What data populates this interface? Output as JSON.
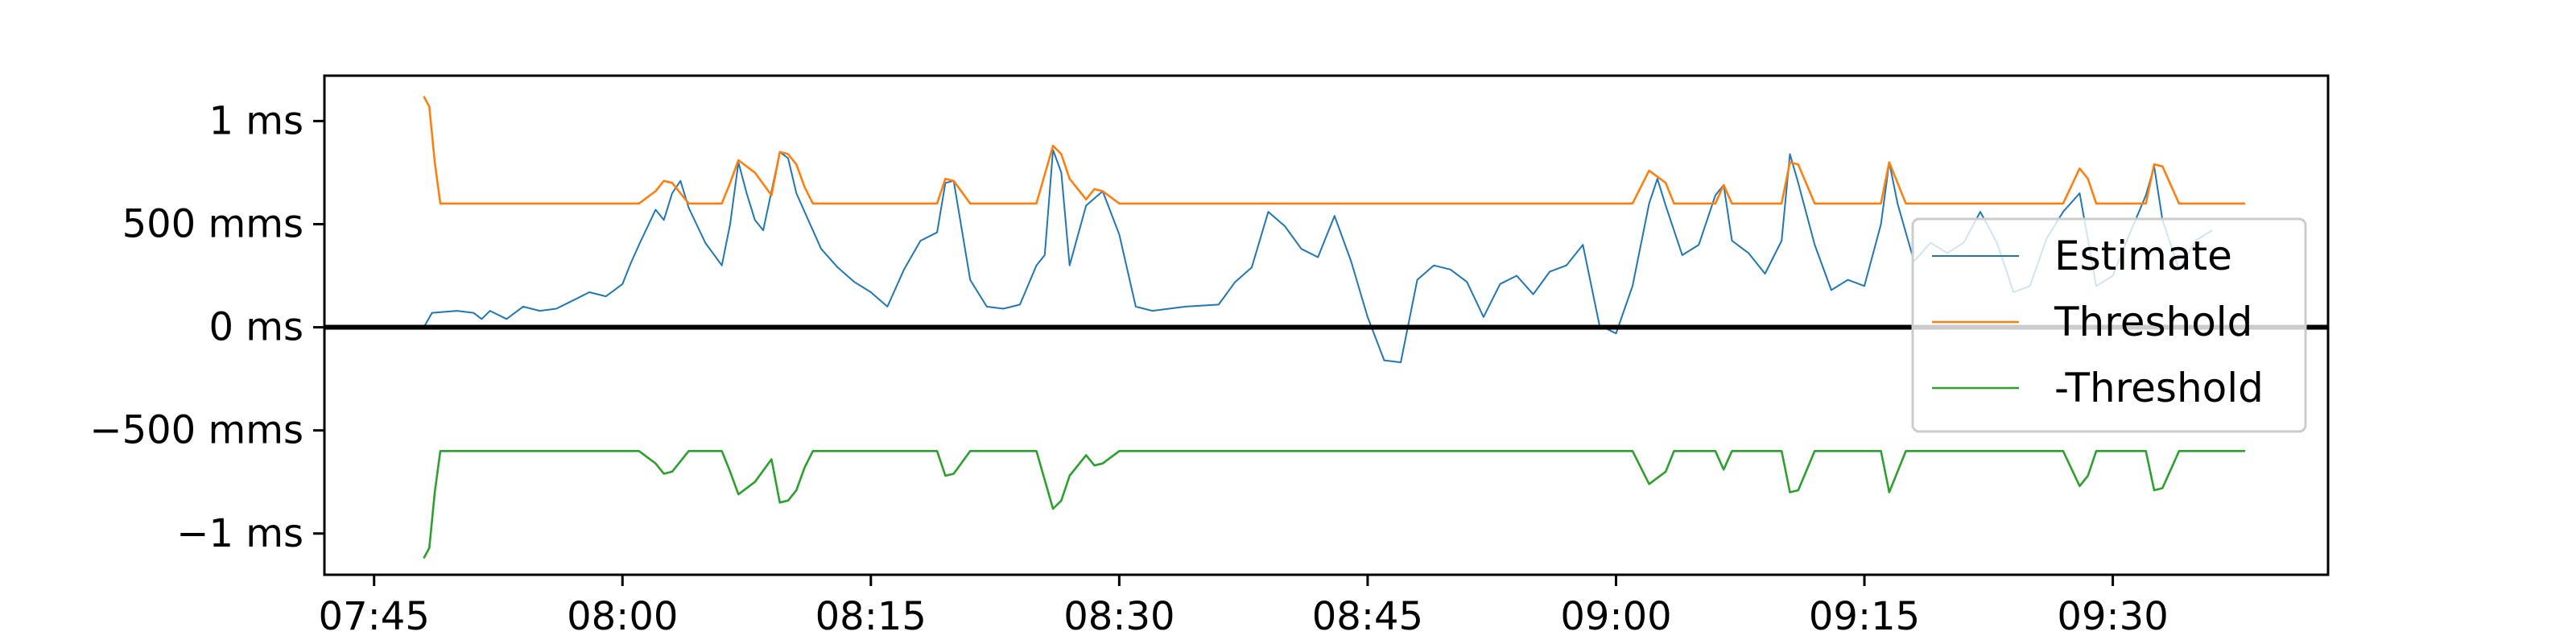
{
  "chart_data": {
    "type": "line",
    "title": "",
    "xlabel": "",
    "ylabel": "",
    "x_ticks": [
      "07:45",
      "08:00",
      "08:15",
      "08:30",
      "08:45",
      "09:00",
      "09:15",
      "09:30"
    ],
    "y_ticks": [
      {
        "value": 1000,
        "label": "1 ms"
      },
      {
        "value": 500,
        "label": "500 mms"
      },
      {
        "value": 0,
        "label": "0 ms"
      },
      {
        "value": -500,
        "label": "−500 mms"
      },
      {
        "value": -1000,
        "label": "−1 ms"
      }
    ],
    "xlim": [
      "07:42",
      "09:43"
    ],
    "ylim": [
      -1200,
      1220
    ],
    "zero_line": true,
    "grid": false,
    "legend_position": "center-right",
    "colors": {
      "estimate": "#1f77b4",
      "threshold": "#ff7f0e",
      "neg_threshold": "#2ca02c"
    },
    "series": [
      {
        "name": "Estimate",
        "points": [
          [
            "07:48",
            0
          ],
          [
            "07:48:30",
            70
          ],
          [
            "07:50",
            80
          ],
          [
            "07:51",
            70
          ],
          [
            "07:51:30",
            40
          ],
          [
            "07:52",
            80
          ],
          [
            "07:53",
            40
          ],
          [
            "07:54",
            100
          ],
          [
            "07:55",
            80
          ],
          [
            "07:56",
            90
          ],
          [
            "07:57",
            130
          ],
          [
            "07:58",
            170
          ],
          [
            "07:59",
            150
          ],
          [
            "08:00",
            210
          ],
          [
            "08:00:30",
            310
          ],
          [
            "08:01",
            400
          ],
          [
            "08:02",
            570
          ],
          [
            "08:02:30",
            520
          ],
          [
            "08:03",
            650
          ],
          [
            "08:03:30",
            710
          ],
          [
            "08:04",
            580
          ],
          [
            "08:05",
            410
          ],
          [
            "08:06",
            300
          ],
          [
            "08:06:30",
            500
          ],
          [
            "08:07",
            800
          ],
          [
            "08:07:30",
            650
          ],
          [
            "08:08",
            520
          ],
          [
            "08:08:30",
            470
          ],
          [
            "08:09",
            660
          ],
          [
            "08:09:30",
            850
          ],
          [
            "08:10",
            820
          ],
          [
            "08:10:30",
            650
          ],
          [
            "08:11",
            560
          ],
          [
            "08:12",
            380
          ],
          [
            "08:13",
            290
          ],
          [
            "08:14",
            220
          ],
          [
            "08:15",
            170
          ],
          [
            "08:16",
            100
          ],
          [
            "08:17",
            280
          ],
          [
            "08:18",
            420
          ],
          [
            "08:19",
            460
          ],
          [
            "08:19:30",
            700
          ],
          [
            "08:20",
            710
          ],
          [
            "08:21",
            230
          ],
          [
            "08:22",
            100
          ],
          [
            "08:23",
            90
          ],
          [
            "08:24",
            110
          ],
          [
            "08:25",
            300
          ],
          [
            "08:25:30",
            350
          ],
          [
            "08:26",
            860
          ],
          [
            "08:26:30",
            750
          ],
          [
            "08:27",
            300
          ],
          [
            "08:28",
            590
          ],
          [
            "08:29",
            660
          ],
          [
            "08:30",
            450
          ],
          [
            "08:31",
            100
          ],
          [
            "08:32",
            80
          ],
          [
            "08:33",
            90
          ],
          [
            "08:34",
            100
          ],
          [
            "08:36",
            110
          ],
          [
            "08:37",
            220
          ],
          [
            "08:38",
            290
          ],
          [
            "08:39",
            560
          ],
          [
            "08:40",
            490
          ],
          [
            "08:41",
            380
          ],
          [
            "08:42",
            340
          ],
          [
            "08:43",
            540
          ],
          [
            "08:44",
            320
          ],
          [
            "08:45",
            50
          ],
          [
            "08:46",
            -160
          ],
          [
            "08:47",
            -170
          ],
          [
            "08:48",
            230
          ],
          [
            "08:49",
            300
          ],
          [
            "08:50",
            280
          ],
          [
            "08:51",
            220
          ],
          [
            "08:52",
            50
          ],
          [
            "08:53",
            210
          ],
          [
            "08:54",
            250
          ],
          [
            "08:55",
            160
          ],
          [
            "08:56",
            270
          ],
          [
            "08:57",
            300
          ],
          [
            "08:58",
            400
          ],
          [
            "08:59",
            10
          ],
          [
            "09:00",
            -30
          ],
          [
            "09:01",
            200
          ],
          [
            "09:02",
            600
          ],
          [
            "09:02:30",
            720
          ],
          [
            "09:03",
            590
          ],
          [
            "09:04",
            350
          ],
          [
            "09:05",
            400
          ],
          [
            "09:06",
            640
          ],
          [
            "09:06:30",
            690
          ],
          [
            "09:07",
            420
          ],
          [
            "09:08",
            360
          ],
          [
            "09:09",
            260
          ],
          [
            "09:10",
            420
          ],
          [
            "09:10:30",
            840
          ],
          [
            "09:11",
            700
          ],
          [
            "09:12",
            400
          ],
          [
            "09:13",
            180
          ],
          [
            "09:14",
            230
          ],
          [
            "09:15",
            200
          ],
          [
            "09:16",
            500
          ],
          [
            "09:16:30",
            800
          ],
          [
            "09:17",
            600
          ],
          [
            "09:18",
            320
          ],
          [
            "09:19",
            410
          ],
          [
            "09:20",
            360
          ],
          [
            "09:21",
            410
          ],
          [
            "09:22",
            560
          ],
          [
            "09:23",
            410
          ],
          [
            "09:24",
            170
          ],
          [
            "09:25",
            200
          ],
          [
            "09:26",
            430
          ],
          [
            "09:27",
            560
          ],
          [
            "09:28",
            650
          ],
          [
            "09:29",
            200
          ],
          [
            "09:30",
            250
          ],
          [
            "09:31",
            450
          ],
          [
            "09:32",
            640
          ],
          [
            "09:32:30",
            780
          ],
          [
            "09:33",
            520
          ],
          [
            "09:34",
            280
          ],
          [
            "09:35",
            420
          ],
          [
            "09:36",
            470
          ]
        ]
      },
      {
        "name": "Threshold",
        "points": [
          [
            "07:48",
            1120
          ],
          [
            "07:48:20",
            1070
          ],
          [
            "07:48:40",
            800
          ],
          [
            "07:49",
            600
          ],
          [
            "08:00",
            600
          ],
          [
            "08:01",
            600
          ],
          [
            "08:02",
            660
          ],
          [
            "08:02:30",
            710
          ],
          [
            "08:03",
            700
          ],
          [
            "08:04",
            600
          ],
          [
            "08:06",
            600
          ],
          [
            "08:06:30",
            700
          ],
          [
            "08:07",
            810
          ],
          [
            "08:08",
            750
          ],
          [
            "08:09",
            640
          ],
          [
            "08:09:30",
            850
          ],
          [
            "08:10",
            840
          ],
          [
            "08:10:30",
            790
          ],
          [
            "08:11",
            680
          ],
          [
            "08:11:30",
            600
          ],
          [
            "08:19",
            600
          ],
          [
            "08:19:30",
            720
          ],
          [
            "08:20",
            710
          ],
          [
            "08:21",
            600
          ],
          [
            "08:25",
            600
          ],
          [
            "08:26",
            880
          ],
          [
            "08:26:30",
            840
          ],
          [
            "08:27",
            720
          ],
          [
            "08:28",
            620
          ],
          [
            "08:28:30",
            670
          ],
          [
            "08:29",
            660
          ],
          [
            "08:30",
            600
          ],
          [
            "09:01",
            600
          ],
          [
            "09:01:30",
            680
          ],
          [
            "09:02",
            760
          ],
          [
            "09:03",
            700
          ],
          [
            "09:03:30",
            600
          ],
          [
            "09:06",
            600
          ],
          [
            "09:06:30",
            690
          ],
          [
            "09:07",
            600
          ],
          [
            "09:10",
            600
          ],
          [
            "09:10:30",
            800
          ],
          [
            "09:11",
            790
          ],
          [
            "09:12",
            600
          ],
          [
            "09:16",
            600
          ],
          [
            "09:16:30",
            800
          ],
          [
            "09:17",
            700
          ],
          [
            "09:17:30",
            600
          ],
          [
            "09:27",
            600
          ],
          [
            "09:28",
            770
          ],
          [
            "09:28:30",
            720
          ],
          [
            "09:29",
            600
          ],
          [
            "09:32",
            600
          ],
          [
            "09:32:30",
            790
          ],
          [
            "09:33",
            780
          ],
          [
            "09:34",
            600
          ],
          [
            "09:38",
            600
          ]
        ]
      },
      {
        "name": "-Threshold",
        "points": [
          [
            "07:48",
            -1120
          ],
          [
            "07:48:20",
            -1070
          ],
          [
            "07:48:40",
            -800
          ],
          [
            "07:49",
            -600
          ],
          [
            "08:00",
            -600
          ],
          [
            "08:01",
            -600
          ],
          [
            "08:02",
            -660
          ],
          [
            "08:02:30",
            -710
          ],
          [
            "08:03",
            -700
          ],
          [
            "08:04",
            -600
          ],
          [
            "08:06",
            -600
          ],
          [
            "08:06:30",
            -700
          ],
          [
            "08:07",
            -810
          ],
          [
            "08:08",
            -750
          ],
          [
            "08:09",
            -640
          ],
          [
            "08:09:30",
            -850
          ],
          [
            "08:10",
            -840
          ],
          [
            "08:10:30",
            -790
          ],
          [
            "08:11",
            -680
          ],
          [
            "08:11:30",
            -600
          ],
          [
            "08:19",
            -600
          ],
          [
            "08:19:30",
            -720
          ],
          [
            "08:20",
            -710
          ],
          [
            "08:21",
            -600
          ],
          [
            "08:25",
            -600
          ],
          [
            "08:26",
            -880
          ],
          [
            "08:26:30",
            -840
          ],
          [
            "08:27",
            -720
          ],
          [
            "08:28",
            -620
          ],
          [
            "08:28:30",
            -670
          ],
          [
            "08:29",
            -660
          ],
          [
            "08:30",
            -600
          ],
          [
            "09:01",
            -600
          ],
          [
            "09:01:30",
            -680
          ],
          [
            "09:02",
            -760
          ],
          [
            "09:03",
            -700
          ],
          [
            "09:03:30",
            -600
          ],
          [
            "09:06",
            -600
          ],
          [
            "09:06:30",
            -690
          ],
          [
            "09:07",
            -600
          ],
          [
            "09:10",
            -600
          ],
          [
            "09:10:30",
            -800
          ],
          [
            "09:11",
            -790
          ],
          [
            "09:12",
            -600
          ],
          [
            "09:16",
            -600
          ],
          [
            "09:16:30",
            -800
          ],
          [
            "09:17",
            -700
          ],
          [
            "09:17:30",
            -600
          ],
          [
            "09:27",
            -600
          ],
          [
            "09:28",
            -770
          ],
          [
            "09:28:30",
            -720
          ],
          [
            "09:29",
            -600
          ],
          [
            "09:32",
            -600
          ],
          [
            "09:32:30",
            -790
          ],
          [
            "09:33",
            -780
          ],
          [
            "09:34",
            -600
          ],
          [
            "09:38",
            -600
          ]
        ]
      }
    ]
  }
}
